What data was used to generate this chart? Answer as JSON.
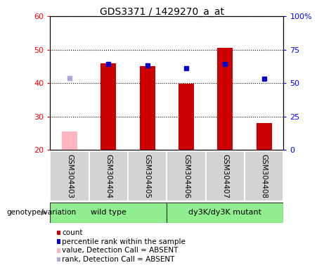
{
  "title": "GDS3371 / 1429270_a_at",
  "samples": [
    "GSM304403",
    "GSM304404",
    "GSM304405",
    "GSM304406",
    "GSM304407",
    "GSM304408"
  ],
  "count_values": [
    null,
    46.0,
    45.0,
    39.8,
    50.5,
    28.0
  ],
  "count_absent": [
    25.5,
    null,
    null,
    null,
    null,
    null
  ],
  "rank_values_left": [
    null,
    45.8,
    45.2,
    44.5,
    45.8,
    41.2
  ],
  "rank_absent_left": [
    41.5,
    null,
    null,
    null,
    null,
    null
  ],
  "ylim_left": [
    20,
    60
  ],
  "ylim_right": [
    0,
    100
  ],
  "yticks_left": [
    20,
    30,
    40,
    50,
    60
  ],
  "yticks_right": [
    0,
    25,
    50,
    75,
    100
  ],
  "bar_color": "#cc0000",
  "bar_absent_color": "#ffb6c1",
  "rank_color": "#0000cc",
  "rank_absent_color": "#aaaadd",
  "bar_width": 0.4,
  "rank_marker_size": 4,
  "legend_entries": [
    "count",
    "percentile rank within the sample",
    "value, Detection Call = ABSENT",
    "rank, Detection Call = ABSENT"
  ],
  "legend_colors": [
    "#cc0000",
    "#0000cc",
    "#ffb6c1",
    "#aaaadd"
  ],
  "genotype_label": "genotype/variation"
}
